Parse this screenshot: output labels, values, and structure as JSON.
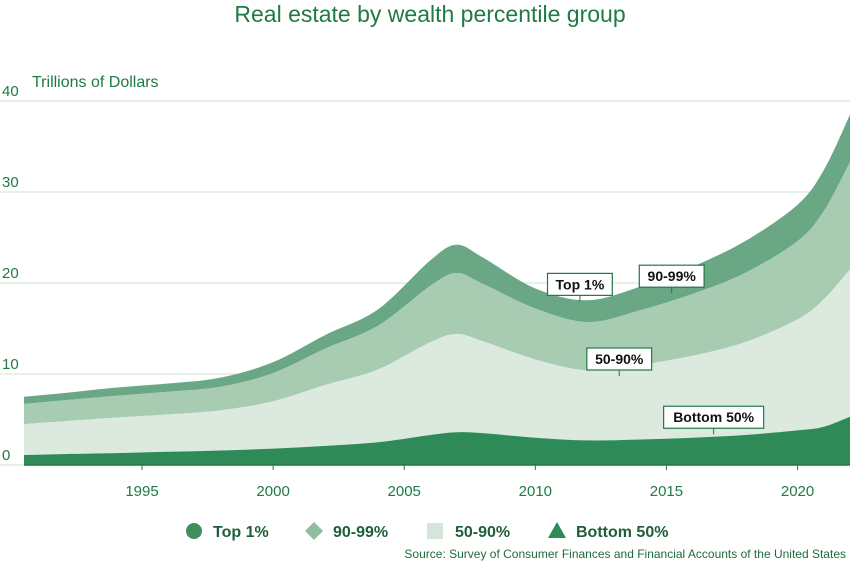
{
  "chart_data": {
    "type": "area",
    "title": "Real estate by wealth percentile group",
    "ylabel": "Trillions of Dollars",
    "xlabel": "",
    "ylim": [
      0,
      40
    ],
    "xlim": [
      1990.5,
      2022
    ],
    "yticks": [
      "0",
      "10",
      "20",
      "30",
      "40"
    ],
    "xticks": [
      "1995",
      "2000",
      "2005",
      "2010",
      "2015",
      "2020"
    ],
    "grid": true,
    "legend_position": "bottom",
    "stacked": true,
    "x": [
      1990.5,
      1992,
      1994,
      1996,
      1998,
      2000,
      2002,
      2004,
      2006,
      2007,
      2008,
      2010,
      2012,
      2014,
      2016,
      2018,
      2020,
      2021,
      2022
    ],
    "series": [
      {
        "name": "Bottom 50%",
        "color": "#2e8b57",
        "values": [
          1.1,
          1.2,
          1.3,
          1.45,
          1.6,
          1.8,
          2.1,
          2.5,
          3.3,
          3.6,
          3.5,
          3.0,
          2.7,
          2.8,
          3.0,
          3.3,
          3.8,
          4.2,
          5.3
        ]
      },
      {
        "name": "50-90%",
        "color": "#dbe9df",
        "values": [
          3.4,
          3.6,
          3.9,
          4.1,
          4.4,
          5.2,
          6.7,
          8.0,
          10.2,
          10.8,
          10.1,
          8.6,
          7.7,
          8.2,
          9.0,
          10.2,
          12.2,
          14.0,
          16.2
        ]
      },
      {
        "name": "90-99%",
        "color": "#a8ccb2",
        "values": [
          2.2,
          2.3,
          2.4,
          2.5,
          2.6,
          3.1,
          4.0,
          4.8,
          6.2,
          6.7,
          6.3,
          5.6,
          5.3,
          6.0,
          6.8,
          7.6,
          8.6,
          9.7,
          11.8
        ]
      },
      {
        "name": "Top 1%",
        "color": "#6aa784",
        "values": [
          0.8,
          0.8,
          0.9,
          0.9,
          1.0,
          1.2,
          1.5,
          1.8,
          2.8,
          3.1,
          2.9,
          2.2,
          2.4,
          2.6,
          3.0,
          3.5,
          4.0,
          4.5,
          5.2
        ]
      }
    ],
    "annotations": [
      {
        "text": "Top 1%",
        "x": 2011.7,
        "y": 18.2
      },
      {
        "text": "90-99%",
        "x": 2015.2,
        "y": 19.1
      },
      {
        "text": "50-90%",
        "x": 2013.2,
        "y": 10.0
      },
      {
        "text": "Bottom 50%",
        "x": 2016.8,
        "y": 3.6
      }
    ],
    "legend": [
      "Top 1%",
      "90-99%",
      "50-90%",
      "Bottom 50%"
    ],
    "source": "Source: Survey of Consumer Finances and Financial Accounts of the United States"
  }
}
